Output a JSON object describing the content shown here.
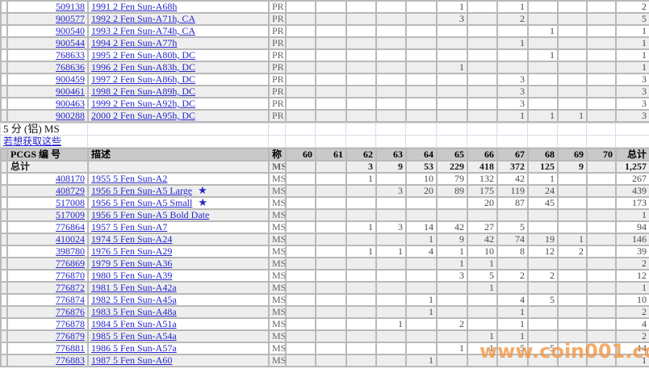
{
  "colors": {
    "link_blue": "#2424cc",
    "header_bg": "#c9c9c9",
    "row_stripe": "#eeeeee",
    "grid_line": "#b9b9b9",
    "light_grid_line": "#d7dde8",
    "watermark_orange": "#f29848"
  },
  "grade_columns": [
    "60",
    "61",
    "62",
    "63",
    "64",
    "65",
    "66",
    "67",
    "68",
    "69",
    "70"
  ],
  "watermark": {
    "text": "www.coin001.com"
  },
  "pr_section": {
    "rows": [
      {
        "pcgs": "509138",
        "desc": "1991 2 Fen Sun-A68h",
        "grade": "PR",
        "v": {
          "65": "1",
          "67": "1"
        },
        "total": "2"
      },
      {
        "pcgs": "900577",
        "desc": "1992 2 Fen Sun-A71h, CA",
        "grade": "PR",
        "v": {
          "65": "3",
          "67": "2"
        },
        "total": "5"
      },
      {
        "pcgs": "900540",
        "desc": "1993 2 Fen Sun-A74h, CA",
        "grade": "PR",
        "v": {
          "68": "1"
        },
        "total": "1"
      },
      {
        "pcgs": "900544",
        "desc": "1994 2 Fen Sun-A77h",
        "grade": "PR",
        "v": {
          "67": "1"
        },
        "total": "1"
      },
      {
        "pcgs": "768633",
        "desc": "1995 2 Fen Sun-A80h, DC",
        "grade": "PR",
        "v": {
          "68": "1"
        },
        "total": "1"
      },
      {
        "pcgs": "768636",
        "desc": "1996 2 Fen Sun-A83h, DC",
        "grade": "PR",
        "v": {
          "65": "1"
        },
        "total": "1"
      },
      {
        "pcgs": "900459",
        "desc": "1997 2 Fen Sun-A86h, DC",
        "grade": "PR",
        "v": {
          "67": "3"
        },
        "total": "3"
      },
      {
        "pcgs": "900461",
        "desc": "1998 2 Fen Sun-A89h, DC",
        "grade": "PR",
        "v": {
          "67": "3"
        },
        "total": "3"
      },
      {
        "pcgs": "900463",
        "desc": "1999 2 Fen Sun-A92h, DC",
        "grade": "PR",
        "v": {
          "67": "3"
        },
        "total": "3"
      },
      {
        "pcgs": "900288",
        "desc": "2000 2 Fen Sun-A95h, DC",
        "grade": "PR",
        "v": {
          "67": "1",
          "68": "1",
          "69": "1"
        },
        "total": "3"
      }
    ]
  },
  "ms_section": {
    "title": "5 分 (铝) MS",
    "link_label": "若想获取这些",
    "header": {
      "pcgs": "PCGS 编 号",
      "desc": "描述",
      "grade": "称",
      "total": "总计"
    },
    "totals_row": {
      "label": "总计",
      "grade": "MS",
      "v": {
        "62": "3",
        "63": "9",
        "64": "53",
        "65": "229",
        "66": "418",
        "67": "372",
        "68": "125",
        "69": "9"
      },
      "total": "1,257"
    },
    "rows": [
      {
        "pcgs": "408170",
        "desc": "1955 5 Fen Sun-A2",
        "grade": "MS",
        "v": {
          "62": "1",
          "64": "10",
          "65": "79",
          "66": "132",
          "67": "42",
          "68": "1"
        },
        "total": "267"
      },
      {
        "pcgs": "408729",
        "desc": "1956 5 Fen Sun-A5 Large",
        "star": "★",
        "grade": "MS",
        "v": {
          "63": "3",
          "64": "20",
          "65": "89",
          "66": "175",
          "67": "119",
          "68": "24"
        },
        "total": "439"
      },
      {
        "pcgs": "517008",
        "desc": "1956 5 Fen Sun-A5 Small",
        "star": "★",
        "grade": "MS",
        "v": {
          "66": "20",
          "67": "87",
          "68": "45"
        },
        "total": "173"
      },
      {
        "pcgs": "517009",
        "desc": "1956 5 Fen Sun-A5 Bold Date",
        "grade": "MS",
        "v": {},
        "total": "1"
      },
      {
        "pcgs": "776864",
        "desc": "1957 5 Fen Sun-A7",
        "grade": "MS",
        "v": {
          "62": "1",
          "63": "3",
          "64": "14",
          "65": "42",
          "66": "27",
          "67": "5"
        },
        "total": "94"
      },
      {
        "pcgs": "410024",
        "desc": "1974 5 Fen Sun-A24",
        "grade": "MS",
        "v": {
          "64": "1",
          "65": "9",
          "66": "42",
          "67": "74",
          "68": "19",
          "69": "1"
        },
        "total": "146"
      },
      {
        "pcgs": "398780",
        "desc": "1976 5 Fen Sun-A29",
        "grade": "MS",
        "v": {
          "62": "1",
          "63": "1",
          "64": "4",
          "65": "1",
          "66": "10",
          "67": "8",
          "68": "12",
          "69": "2"
        },
        "total": "39"
      },
      {
        "pcgs": "776869",
        "desc": "1979 5 Fen Sun-A36",
        "grade": "MS",
        "v": {
          "65": "1",
          "66": "1"
        },
        "total": "2"
      },
      {
        "pcgs": "776870",
        "desc": "1980 5 Fen Sun-A39",
        "grade": "MS",
        "v": {
          "65": "3",
          "66": "5",
          "67": "2",
          "68": "2"
        },
        "total": "12"
      },
      {
        "pcgs": "776872",
        "desc": "1981 5 Fen Sun-A42a",
        "grade": "MS",
        "v": {
          "66": "1"
        },
        "total": "1"
      },
      {
        "pcgs": "776874",
        "desc": "1982 5 Fen Sun-A45a",
        "grade": "MS",
        "v": {
          "64": "1",
          "67": "4",
          "68": "5"
        },
        "total": "10"
      },
      {
        "pcgs": "776876",
        "desc": "1983 5 Fen Sun-A48a",
        "grade": "MS",
        "v": {
          "64": "1",
          "67": "1"
        },
        "total": "2"
      },
      {
        "pcgs": "776878",
        "desc": "1984 5 Fen Sun-A51a",
        "grade": "MS",
        "v": {
          "63": "1",
          "65": "2",
          "67": "1"
        },
        "total": "4"
      },
      {
        "pcgs": "776879",
        "desc": "1985 5 Fen Sun-A54a",
        "grade": "MS",
        "v": {
          "66": "1",
          "67": "1"
        },
        "total": "2"
      },
      {
        "pcgs": "776881",
        "desc": "1986 5 Fen Sun-A57a",
        "grade": "MS",
        "v": {
          "65": "1",
          "66": "1",
          "67": "5",
          "68": "5"
        },
        "total": "14"
      },
      {
        "pcgs": "776883",
        "desc": "1987 5 Fen Sun-A60",
        "grade": "MS",
        "v": {
          "64": "1"
        },
        "total": "1"
      }
    ]
  }
}
